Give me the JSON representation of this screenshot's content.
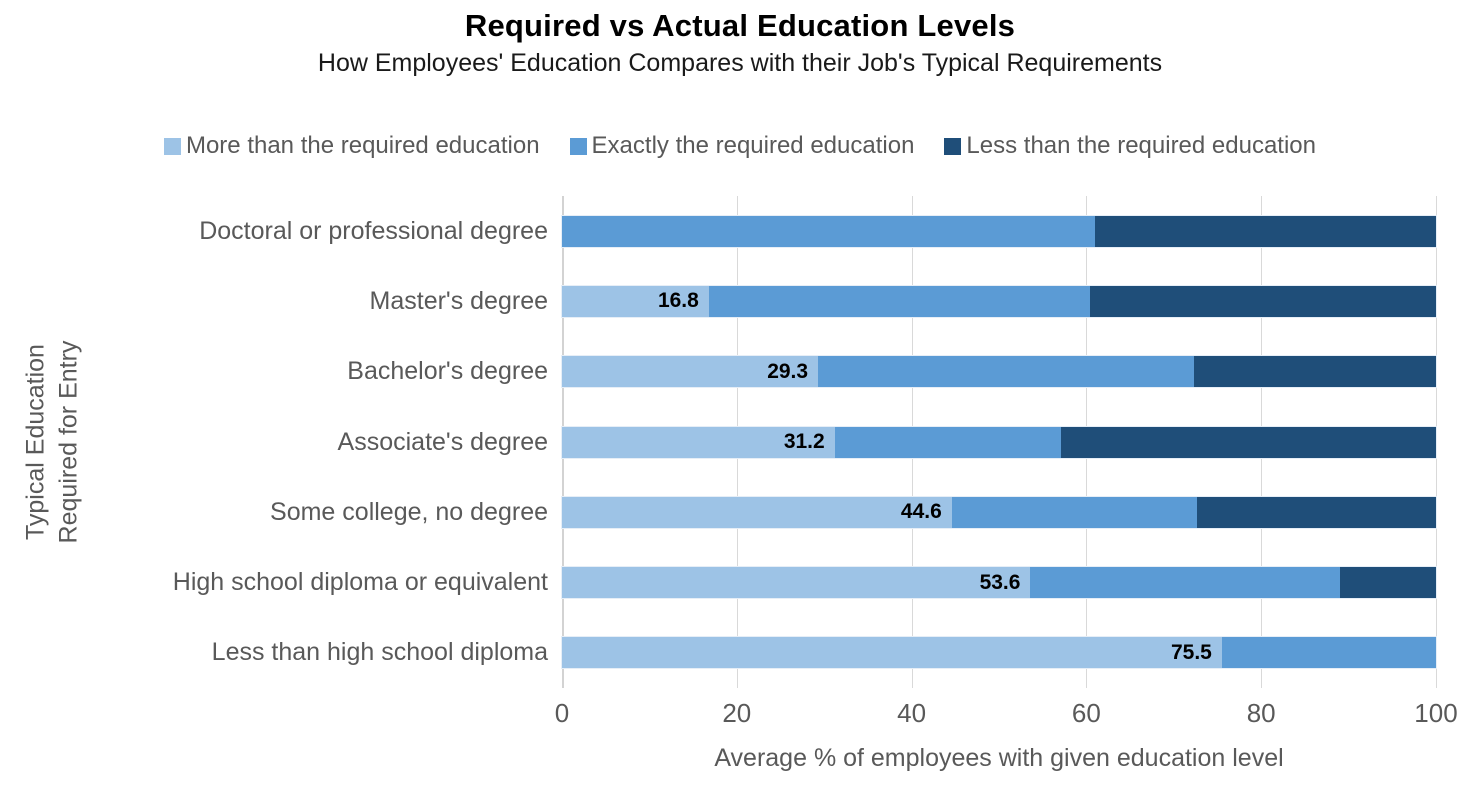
{
  "title": "Required vs Actual Education Levels",
  "subtitle": "How Employees' Education Compares with their Job's Typical Requirements",
  "legend": [
    {
      "label": "More than the required education",
      "color": "#9DC3E6"
    },
    {
      "label": "Exactly the required education",
      "color": "#5B9BD5"
    },
    {
      "label": "Less than the required education",
      "color": "#1F4E79"
    }
  ],
  "axes": {
    "y_title_line1": "Typical Education",
    "y_title_line2": "Required for Entry",
    "x_title": "Average % of employees with given education level",
    "x_ticks": [
      "0",
      "20",
      "40",
      "60",
      "80",
      "100"
    ]
  },
  "chart_data": {
    "type": "bar",
    "orientation": "horizontal",
    "stacked": true,
    "title": "Required vs Actual Education Levels",
    "subtitle": "How Employees' Education Compares with their Job's Typical Requirements",
    "xlabel": "Average % of employees with given education level",
    "ylabel": "Typical Education Required for Entry",
    "xlim": [
      0,
      100
    ],
    "xticks": [
      0,
      20,
      40,
      60,
      80,
      100
    ],
    "grid": "vertical",
    "legend_position": "top",
    "categories": [
      "Doctoral or professional degree",
      "Master's degree",
      "Bachelor's degree",
      "Associate's degree",
      "Some college, no degree",
      "High school diploma or equivalent",
      "Less than high school diploma"
    ],
    "series": [
      {
        "name": "More than the required education",
        "color": "#9DC3E6",
        "values": [
          0,
          16.8,
          29.3,
          31.2,
          44.6,
          53.6,
          75.5
        ],
        "labels": [
          "",
          "16.8",
          "29.3",
          "31.2",
          "44.6",
          "53.6",
          "75.5"
        ]
      },
      {
        "name": "Exactly the required education",
        "color": "#5B9BD5",
        "values": [
          61.0,
          43.6,
          43.0,
          25.9,
          28.1,
          35.4,
          24.5
        ],
        "labels": [
          "",
          "",
          "",
          "",
          "",
          "",
          ""
        ]
      },
      {
        "name": "Less than the required education",
        "color": "#1F4E79",
        "values": [
          39.0,
          39.6,
          27.7,
          42.9,
          27.3,
          11.0,
          0
        ],
        "labels": [
          "",
          "",
          "",
          "",
          "",
          "",
          ""
        ]
      }
    ]
  }
}
